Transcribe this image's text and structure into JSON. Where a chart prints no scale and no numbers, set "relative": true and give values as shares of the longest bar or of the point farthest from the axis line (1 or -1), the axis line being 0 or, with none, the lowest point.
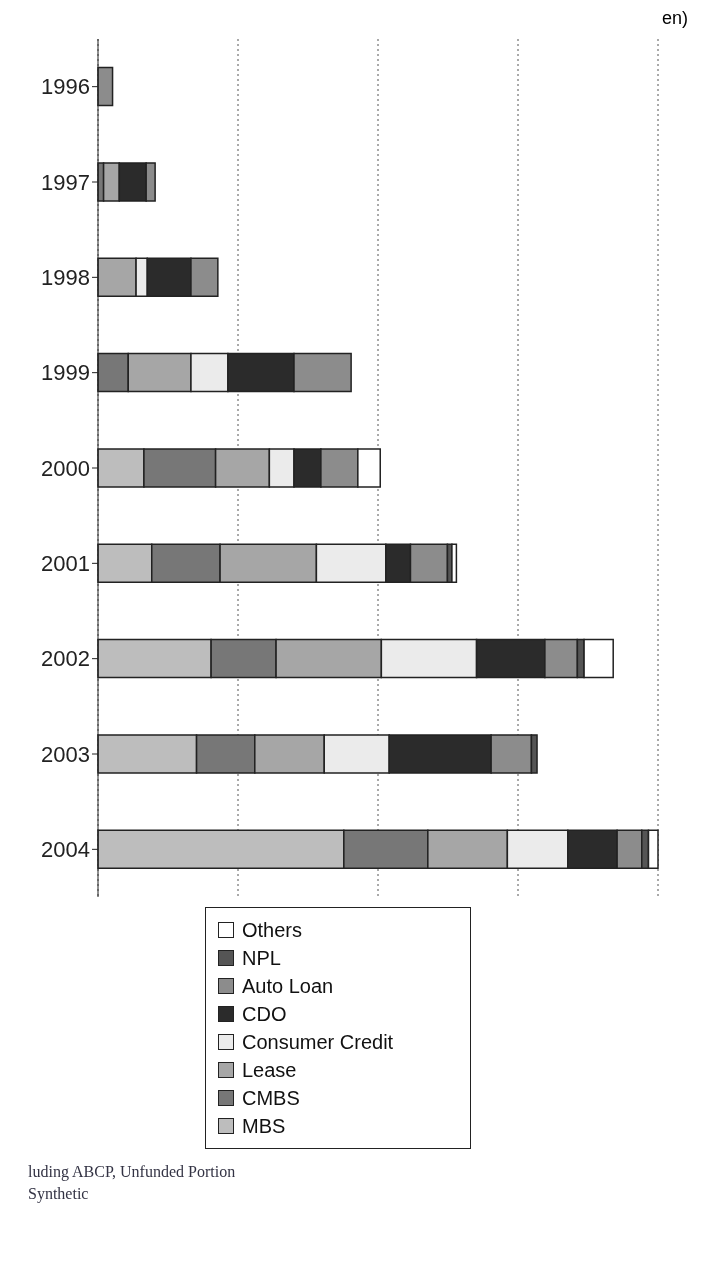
{
  "chart_data": {
    "type": "bar",
    "orientation": "horizontal",
    "stacked": true,
    "relative": true,
    "xlabel": "en)",
    "categories": [
      "1996",
      "1997",
      "1998",
      "1999",
      "2000",
      "2001",
      "2002",
      "2003",
      "2004"
    ],
    "series": [
      {
        "name": "MBS",
        "color": "#bdbdbd",
        "values": [
          null,
          null,
          null,
          null,
          0.082,
          0.096,
          0.202,
          0.176,
          0.439
        ]
      },
      {
        "name": "CMBS",
        "color": "#777777",
        "values": [
          null,
          0.01,
          null,
          0.054,
          0.128,
          0.122,
          0.116,
          0.104,
          0.15
        ]
      },
      {
        "name": "Lease",
        "color": "#a6a6a6",
        "values": [
          null,
          0.028,
          0.068,
          0.112,
          0.096,
          0.172,
          0.188,
          0.124,
          0.142
        ]
      },
      {
        "name": "Consumer Credit",
        "color": "#ebebeb",
        "values": [
          null,
          null,
          0.02,
          0.066,
          0.044,
          0.124,
          0.17,
          0.116,
          0.108
        ]
      },
      {
        "name": "CDO",
        "color": "#2b2b2b",
        "values": [
          null,
          0.048,
          0.078,
          0.118,
          0.048,
          0.044,
          0.122,
          0.182,
          0.088
        ]
      },
      {
        "name": "Auto Loan",
        "color": "#8c8c8c",
        "values": [
          0.026,
          0.016,
          0.048,
          0.102,
          0.066,
          0.066,
          0.058,
          0.072,
          0.044
        ]
      },
      {
        "name": "NPL",
        "color": "#555555",
        "values": [
          null,
          null,
          null,
          null,
          null,
          0.008,
          0.012,
          0.01,
          0.012
        ]
      },
      {
        "name": "Others",
        "color": "#ffffff",
        "values": [
          null,
          null,
          null,
          null,
          0.04,
          0.008,
          0.052,
          null,
          0.017
        ]
      }
    ],
    "grid": "x",
    "legend": "bottom",
    "annotations": [
      "luding ABCP, Unfunded Portion",
      "Synthetic"
    ]
  }
}
